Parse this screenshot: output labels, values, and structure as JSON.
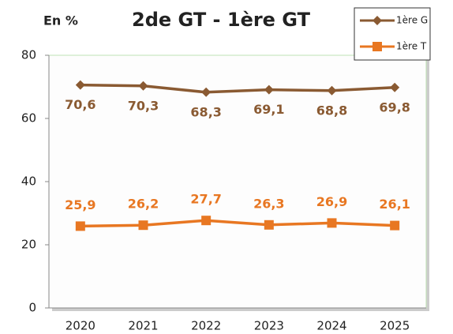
{
  "chart_data": {
    "type": "line",
    "title": "2de GT - 1ère GT",
    "y_label": "En %",
    "categories": [
      "2020",
      "2021",
      "2022",
      "2023",
      "2024",
      "2025"
    ],
    "series": [
      {
        "name": "1ère G",
        "color": "#8a5a32",
        "values": [
          70.6,
          70.3,
          68.3,
          69.1,
          68.8,
          69.8
        ],
        "value_labels": [
          "70,6",
          "70,3",
          "68,3",
          "69,1",
          "68,8",
          "69,8"
        ],
        "marker": "diamond"
      },
      {
        "name": "1ère T",
        "color": "#e87722",
        "values": [
          25.9,
          26.2,
          27.7,
          26.3,
          26.9,
          26.1
        ],
        "value_labels": [
          "25,9",
          "26,2",
          "27,7",
          "26,3",
          "26,9",
          "26,1"
        ],
        "marker": "square"
      }
    ],
    "ylim": [
      0,
      80
    ],
    "yticks": [
      0,
      20,
      40,
      60,
      80
    ],
    "grid": false,
    "legend": "top-right"
  }
}
